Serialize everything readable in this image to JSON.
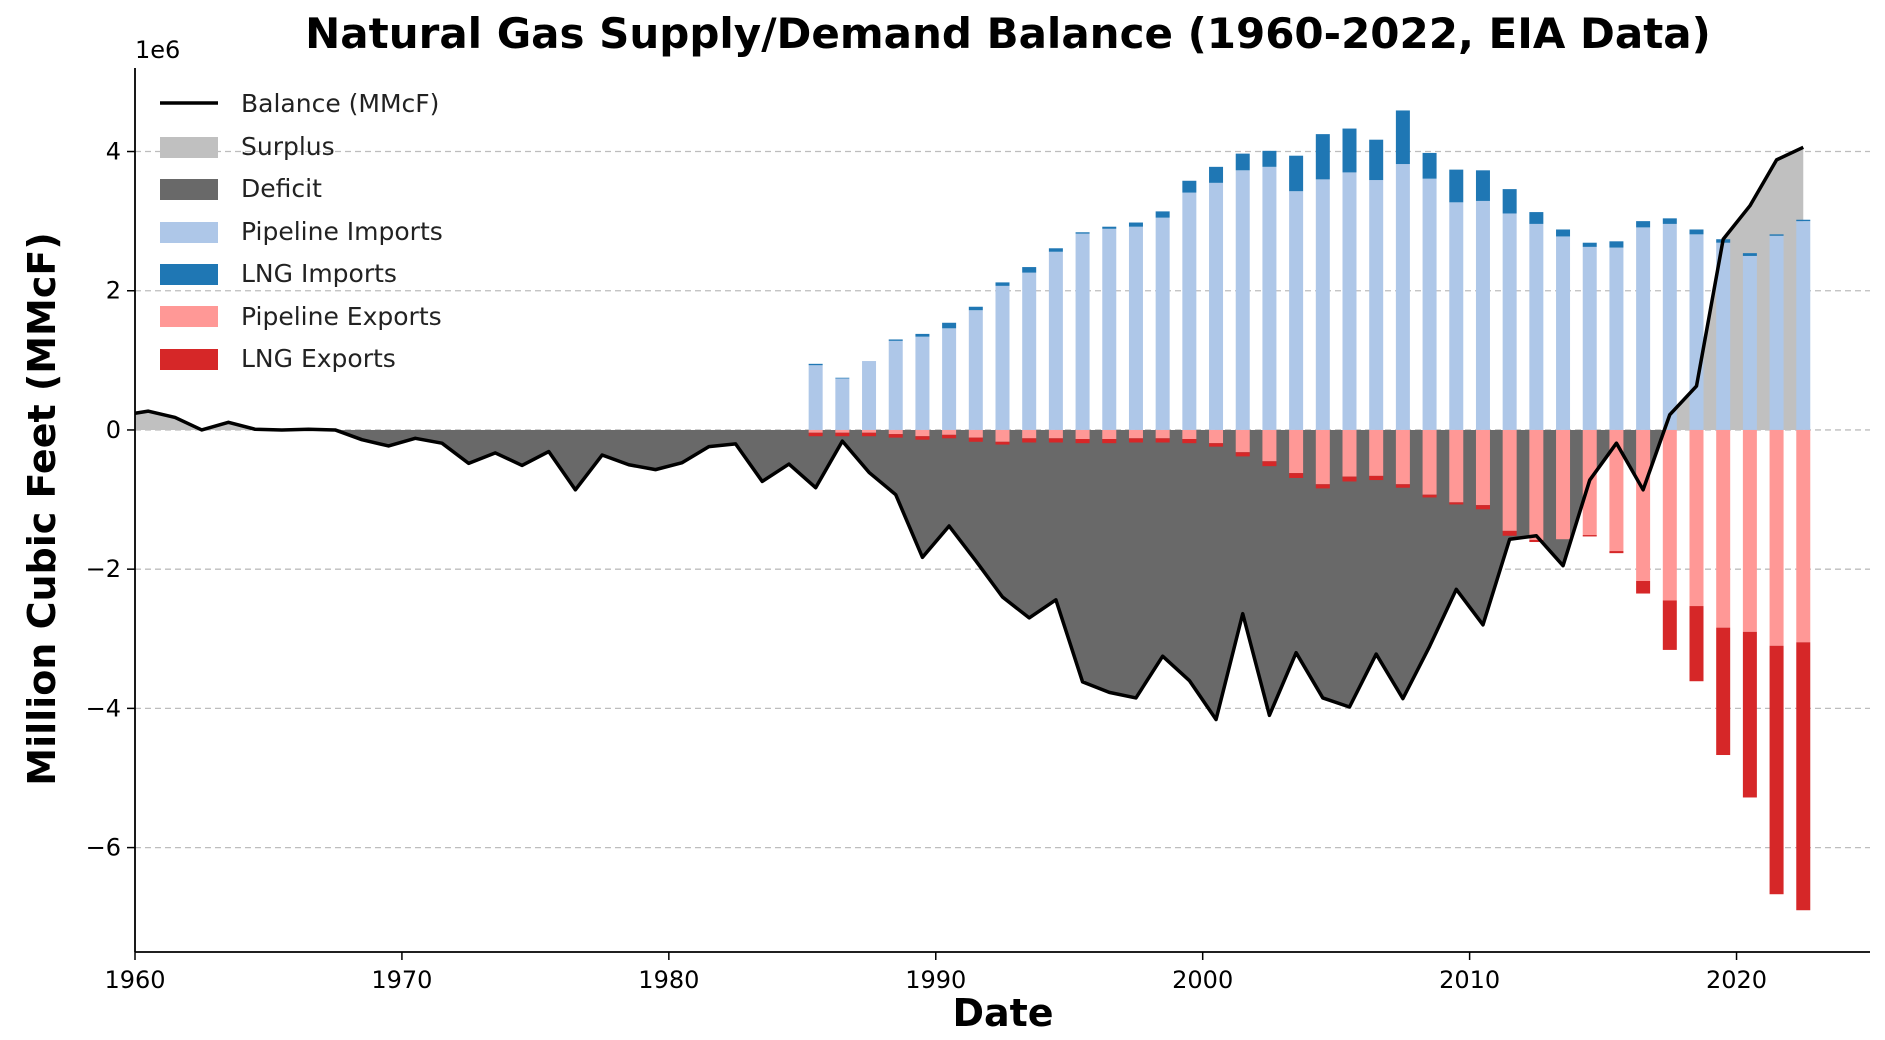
{
  "chart_data": {
    "type": "bar",
    "title": "Natural Gas Supply/Demand Balance (1960-2022, EIA Data)",
    "xlabel": "Date",
    "ylabel": "Million Cubic Feet (MMcF)",
    "y_offset_label": "1e6",
    "xlim": [
      1960,
      2025
    ],
    "ylim": [
      -7.5,
      5.2
    ],
    "y_scale": 1000000,
    "xticks": [
      1960,
      1970,
      1980,
      1990,
      2000,
      2010,
      2020
    ],
    "xtick_labels": [
      "1960",
      "1970",
      "1980",
      "1990",
      "2000",
      "2010",
      "2020"
    ],
    "yticks": [
      -6,
      -4,
      -2,
      0,
      2,
      4
    ],
    "ytick_labels": [
      "−6",
      "−4",
      "−2",
      "0",
      "2",
      "4"
    ],
    "grid": "horizontal dashed",
    "legend_position": "top-left",
    "legend": [
      "Balance (MMcF)",
      "Surplus",
      "Deficit",
      "Pipeline Imports",
      "LNG Imports",
      "Pipeline Exports",
      "LNG Exports"
    ],
    "colors": {
      "balance": "#000000",
      "surplus": "#c0c0c0",
      "deficit": "#696969",
      "pipeline_imports": "#aec7e8",
      "lng_imports": "#1f77b4",
      "pipeline_exports": "#ff9896",
      "lng_exports": "#d62728"
    },
    "balance": {
      "x": [
        1960,
        1960.5,
        1961.5,
        1962.5,
        1963.5,
        1964.5,
        1965.5,
        1966.5,
        1967.5,
        1968.5,
        1969.5,
        1970.5,
        1971.5,
        1972.5,
        1973.5,
        1974.5,
        1975.5,
        1976.5,
        1977.5,
        1978.5,
        1979.5,
        1980.5,
        1981.5,
        1982.5,
        1983.5,
        1984.5,
        1985.5,
        1986.5,
        1987.5,
        1988.5,
        1989.5,
        1990.5,
        1991.5,
        1992.5,
        1993.5,
        1994.5,
        1995.5,
        1996.5,
        1997.5,
        1998.5,
        1999.5,
        2000.5,
        2001.5,
        2002.5,
        2003.5,
        2004.5,
        2005.5,
        2006.5,
        2007.5,
        2008.5,
        2009.5,
        2010.5,
        2011.5,
        2012.5,
        2013.5,
        2014.5,
        2015.5,
        2016.5,
        2017.5,
        2018.5,
        2019.5,
        2020.5,
        2021.5,
        2022.5
      ],
      "y": [
        0.24,
        0.27,
        0.18,
        0.0,
        0.11,
        0.01,
        0.0,
        0.01,
        0.0,
        -0.14,
        -0.23,
        -0.12,
        -0.19,
        -0.48,
        -0.33,
        -0.51,
        -0.31,
        -0.86,
        -0.36,
        -0.5,
        -0.57,
        -0.47,
        -0.24,
        -0.2,
        -0.74,
        -0.49,
        -0.83,
        -0.16,
        -0.61,
        -0.93,
        -1.83,
        -1.38,
        -1.88,
        -2.4,
        -2.7,
        -2.44,
        -3.62,
        -3.77,
        -3.85,
        -3.25,
        -3.6,
        -4.16,
        -2.64,
        -4.1,
        -3.2,
        -3.85,
        -3.98,
        -3.22,
        -3.86,
        -3.11,
        -2.29,
        -2.8,
        -1.57,
        -1.52,
        -1.95,
        -0.72,
        -0.19,
        -0.86,
        0.22,
        0.63,
        2.74,
        3.22,
        3.88,
        4.06
      ]
    },
    "bars": {
      "x": [
        1985.5,
        1986.5,
        1987.5,
        1988.5,
        1989.5,
        1990.5,
        1991.5,
        1992.5,
        1993.5,
        1994.5,
        1995.5,
        1996.5,
        1997.5,
        1998.5,
        1999.5,
        2000.5,
        2001.5,
        2002.5,
        2003.5,
        2004.5,
        2005.5,
        2006.5,
        2007.5,
        2008.5,
        2009.5,
        2010.5,
        2011.5,
        2012.5,
        2013.5,
        2014.5,
        2015.5,
        2016.5,
        2017.5,
        2018.5,
        2019.5,
        2020.5,
        2021.5,
        2022.5
      ],
      "pipeline_imports": [
        0.93,
        0.74,
        0.99,
        1.28,
        1.34,
        1.46,
        1.72,
        2.07,
        2.26,
        2.56,
        2.82,
        2.89,
        2.92,
        3.05,
        3.41,
        3.55,
        3.73,
        3.78,
        3.43,
        3.6,
        3.7,
        3.59,
        3.82,
        3.61,
        3.27,
        3.29,
        3.11,
        2.96,
        2.78,
        2.63,
        2.62,
        2.91,
        2.96,
        2.81,
        2.69,
        2.5,
        2.79,
        3.0
      ],
      "lng_imports": [
        0.02,
        0.01,
        0.0,
        0.02,
        0.04,
        0.08,
        0.05,
        0.05,
        0.08,
        0.05,
        0.02,
        0.03,
        0.06,
        0.09,
        0.17,
        0.23,
        0.24,
        0.23,
        0.51,
        0.65,
        0.63,
        0.58,
        0.77,
        0.37,
        0.47,
        0.44,
        0.35,
        0.17,
        0.1,
        0.06,
        0.09,
        0.09,
        0.08,
        0.07,
        0.05,
        0.04,
        0.02,
        0.02
      ],
      "pipeline_exports": [
        -0.04,
        -0.04,
        -0.04,
        -0.06,
        -0.09,
        -0.07,
        -0.11,
        -0.17,
        -0.12,
        -0.12,
        -0.13,
        -0.13,
        -0.12,
        -0.12,
        -0.13,
        -0.19,
        -0.32,
        -0.45,
        -0.62,
        -0.78,
        -0.67,
        -0.66,
        -0.78,
        -0.93,
        -1.04,
        -1.08,
        -1.45,
        -1.58,
        -1.57,
        -1.51,
        -1.74,
        -2.17,
        -2.45,
        -2.53,
        -2.84,
        -2.9,
        -3.1,
        -3.05
      ],
      "lng_exports": [
        -0.05,
        -0.05,
        -0.05,
        -0.05,
        -0.05,
        -0.05,
        -0.06,
        -0.04,
        -0.06,
        -0.06,
        -0.06,
        -0.06,
        -0.06,
        -0.06,
        -0.06,
        -0.05,
        -0.06,
        -0.07,
        -0.07,
        -0.06,
        -0.07,
        -0.06,
        -0.05,
        -0.04,
        -0.03,
        -0.06,
        -0.07,
        -0.03,
        0.0,
        -0.02,
        -0.03,
        -0.18,
        -0.71,
        -1.08,
        -1.83,
        -2.38,
        -3.57,
        -3.85
      ]
    }
  }
}
